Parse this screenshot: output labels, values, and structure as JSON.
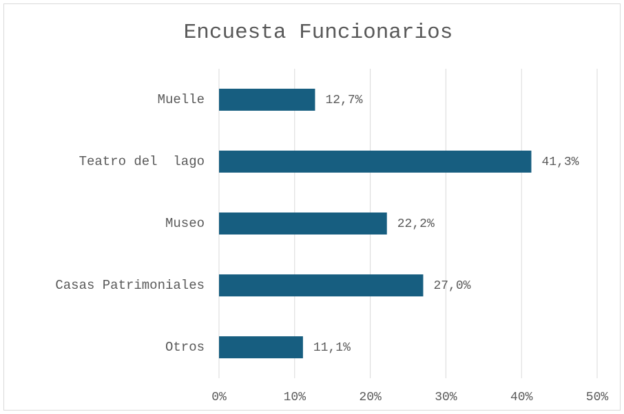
{
  "chart_data": {
    "type": "bar",
    "orientation": "horizontal",
    "title": "Encuesta Funcionarios",
    "categories": [
      "Muelle",
      "Teatro del  lago",
      "Museo",
      "Casas Patrimoniales",
      "Otros"
    ],
    "values": [
      12.7,
      41.3,
      22.2,
      27.0,
      11.1
    ],
    "value_labels": [
      "12,7%",
      "41,3%",
      "22,2%",
      "27,0%",
      "11,1%"
    ],
    "color": "#175e80",
    "xlim": [
      0,
      50
    ],
    "xticks": [
      {
        "value": 0,
        "label": "0%"
      },
      {
        "value": 10,
        "label": "10%"
      },
      {
        "value": 20,
        "label": "20%"
      },
      {
        "value": 30,
        "label": "30%"
      },
      {
        "value": 40,
        "label": "40%"
      },
      {
        "value": 50,
        "label": "50%"
      }
    ],
    "grid": true
  }
}
